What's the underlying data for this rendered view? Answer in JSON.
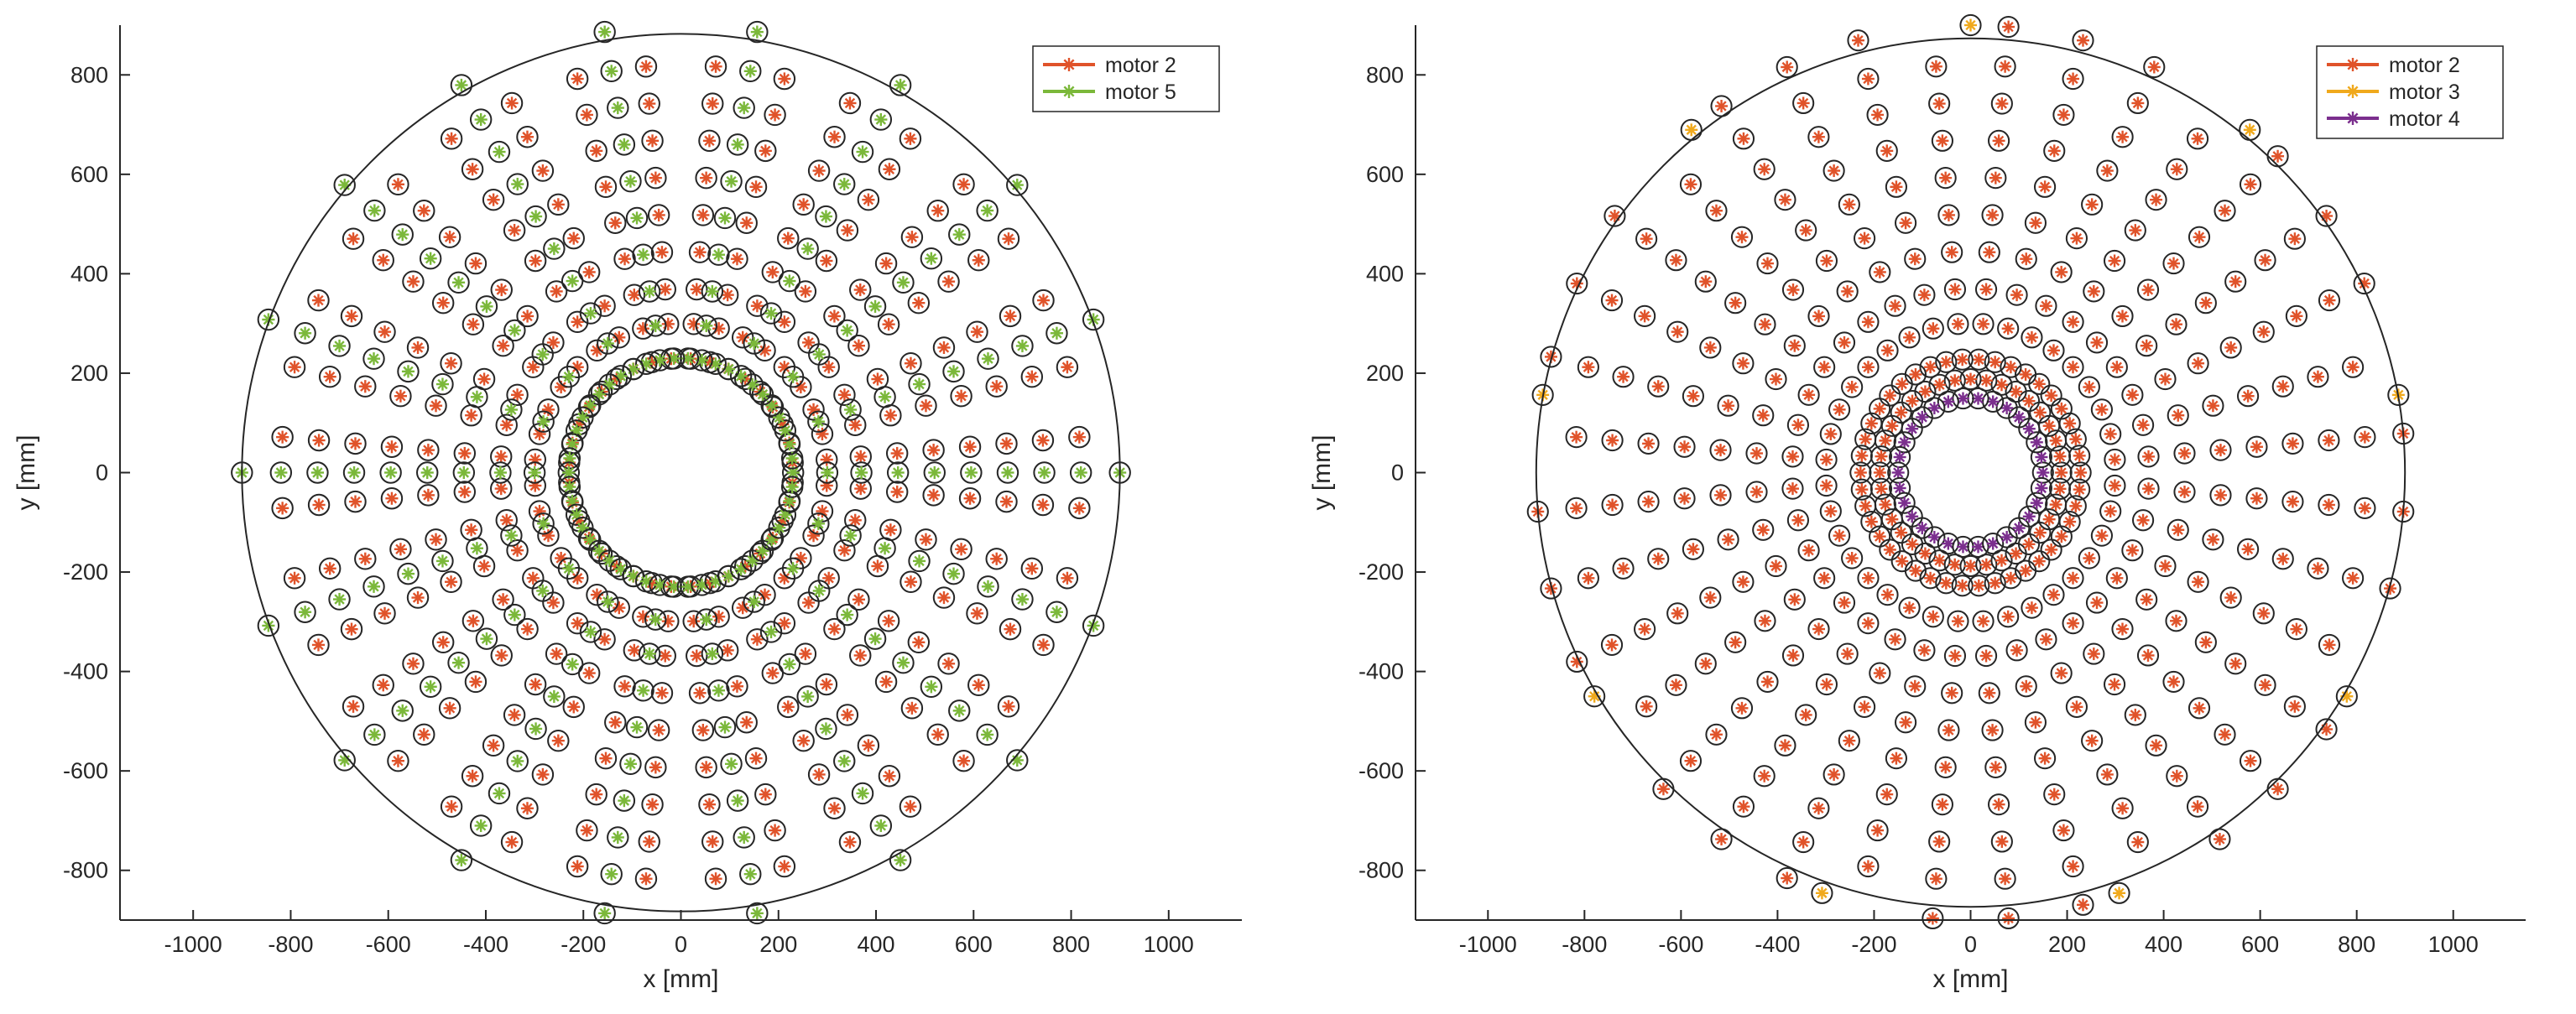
{
  "chart_data": [
    {
      "type": "scatter",
      "xlabel": "x [mm]",
      "ylabel": "y [mm]",
      "xlim": [
        -1150,
        1150
      ],
      "ylim": [
        -900,
        900
      ],
      "xticks": [
        -1000,
        -800,
        -600,
        -400,
        -200,
        0,
        200,
        400,
        600,
        800,
        1000
      ],
      "yticks": [
        -800,
        -600,
        -400,
        -200,
        0,
        200,
        400,
        600,
        800
      ],
      "outer_circle_radius": 900,
      "marker_circle_radius_mm": 21,
      "legend_position": "top-right",
      "series": [
        {
          "name": "motor 2",
          "color": "#e0532a",
          "pattern": "radial spokes",
          "spokes": 36,
          "spoke_angle_offset_deg": 5,
          "radii": [
            230,
            300,
            370,
            445,
            520,
            595,
            670,
            745,
            820
          ]
        },
        {
          "name": "motor 5",
          "color": "#7bb83a",
          "pattern": "radial spokes plus inner ring",
          "spokes": 18,
          "spoke_angle_offset_deg": 0,
          "radii": [
            300,
            370,
            445,
            520,
            595,
            670,
            745,
            820,
            900
          ],
          "inner_ring": {
            "radius": 230,
            "count": 50
          }
        }
      ]
    },
    {
      "type": "scatter",
      "xlabel": "x [mm]",
      "ylabel": "y [mm]",
      "xlim": [
        -1150,
        1150
      ],
      "ylim": [
        -900,
        900
      ],
      "xticks": [
        -1000,
        -800,
        -600,
        -400,
        -200,
        0,
        200,
        400,
        600,
        800,
        1000
      ],
      "yticks": [
        -800,
        -600,
        -400,
        -200,
        0,
        200,
        400,
        600,
        800
      ],
      "outer_circle_radius": 900,
      "marker_circle_radius_mm": 21,
      "legend_position": "top-right",
      "series": [
        {
          "name": "motor 2",
          "color": "#e0532a",
          "pattern": "radial spokes plus rings",
          "spokes": 36,
          "spoke_angle_offset_deg": 5,
          "radii": [
            300,
            370,
            445,
            520,
            595,
            670,
            745,
            820
          ],
          "rings": [
            {
              "radius": 228,
              "count": 42
            },
            {
              "radius": 188,
              "count": 36
            }
          ],
          "outer_ring": {
            "radius": 900,
            "count": 36,
            "angle_offset_deg": 5,
            "skip_every_fourth_from": 1
          }
        },
        {
          "name": "motor 3",
          "color": "#f0a91c",
          "pattern": "outer ring",
          "outer_ring": {
            "radius": 900,
            "count": 9,
            "angle_offset_deg": 10
          }
        },
        {
          "name": "motor 4",
          "color": "#7b2f8e",
          "pattern": "inner ring",
          "inner_ring": {
            "radius": 150,
            "count": 30
          }
        }
      ]
    }
  ]
}
